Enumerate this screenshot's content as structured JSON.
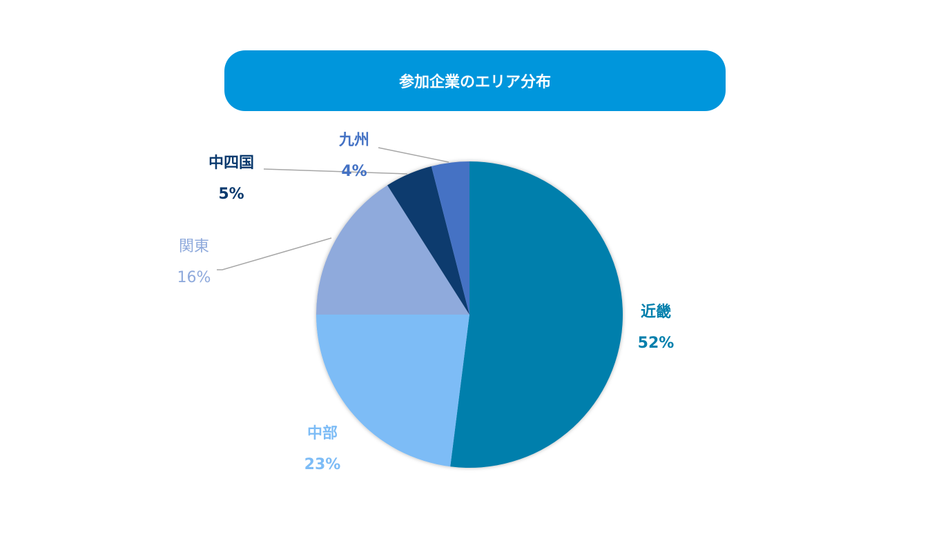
{
  "chart_data": {
    "type": "pie",
    "title": "参加企業のエリア分布",
    "slices": [
      {
        "label": "近畿",
        "value": 52,
        "pct_label": "52%",
        "color": "#007FAC"
      },
      {
        "label": "中部",
        "value": 23,
        "pct_label": "23%",
        "color": "#7DBCF6"
      },
      {
        "label": "関東",
        "value": 16,
        "pct_label": "16%",
        "color": "#8FAADC"
      },
      {
        "label": "中四国",
        "value": 5,
        "pct_label": "5%",
        "color": "#0A3A6E"
      },
      {
        "label": "九州",
        "value": 4,
        "pct_label": "4%",
        "color": "#4472C4"
      }
    ],
    "start_angle": "top",
    "direction": "clockwise",
    "legend": "none"
  },
  "header": {
    "color": "#0096DC"
  }
}
